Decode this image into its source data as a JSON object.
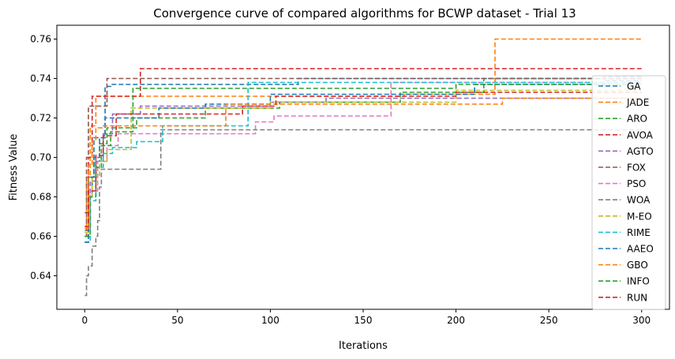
{
  "chart_data": {
    "type": "line",
    "title": "Convergence curve of compared algorithms for BCWP dataset - Trial 13",
    "xlabel": "Iterations",
    "ylabel": "Fitness Value",
    "xlim": [
      -15,
      315
    ],
    "ylim": [
      0.623,
      0.767
    ],
    "xticks": [
      0,
      50,
      100,
      150,
      200,
      250,
      300
    ],
    "yticks": [
      0.64,
      0.66,
      0.68,
      0.7,
      0.72,
      0.74,
      0.76
    ],
    "grid": false,
    "legend_position": "right",
    "series": [
      {
        "name": "GA",
        "color": "#1f77b4",
        "points": [
          [
            0,
            0.657
          ],
          [
            2,
            0.68
          ],
          [
            4,
            0.69
          ],
          [
            6,
            0.698
          ],
          [
            8,
            0.71
          ],
          [
            11,
            0.736
          ],
          [
            14,
            0.737
          ],
          [
            115,
            0.74
          ],
          [
            280,
            0.741
          ],
          [
            300,
            0.741
          ]
        ]
      },
      {
        "name": "JADE",
        "color": "#ff7f0e",
        "points": [
          [
            0,
            0.665
          ],
          [
            1,
            0.69
          ],
          [
            3,
            0.716
          ],
          [
            6,
            0.731
          ],
          [
            13,
            0.731
          ],
          [
            80,
            0.731
          ],
          [
            140,
            0.731
          ],
          [
            172,
            0.732
          ],
          [
            221,
            0.76
          ],
          [
            300,
            0.76
          ]
        ]
      },
      {
        "name": "ARO",
        "color": "#2ca02c",
        "points": [
          [
            0,
            0.66
          ],
          [
            2,
            0.69
          ],
          [
            5,
            0.7
          ],
          [
            8,
            0.707
          ],
          [
            12,
            0.715
          ],
          [
            28,
            0.72
          ],
          [
            65,
            0.725
          ],
          [
            105,
            0.728
          ],
          [
            170,
            0.733
          ],
          [
            215,
            0.74
          ],
          [
            300,
            0.74
          ]
        ]
      },
      {
        "name": "AVOA",
        "color": "#d62728",
        "points": [
          [
            0,
            0.672
          ],
          [
            2,
            0.7
          ],
          [
            4,
            0.731
          ],
          [
            14,
            0.731
          ],
          [
            30,
            0.745
          ],
          [
            300,
            0.745
          ]
        ]
      },
      {
        "name": "AGTO",
        "color": "#9467bd",
        "points": [
          [
            0,
            0.663
          ],
          [
            3,
            0.688
          ],
          [
            6,
            0.7
          ],
          [
            10,
            0.712
          ],
          [
            15,
            0.722
          ],
          [
            30,
            0.726
          ],
          [
            60,
            0.726
          ],
          [
            100,
            0.728
          ],
          [
            130,
            0.73
          ],
          [
            300,
            0.73
          ]
        ]
      },
      {
        "name": "FOX",
        "color": "#8c564b",
        "points": [
          [
            0,
            0.66
          ],
          [
            1,
            0.7
          ],
          [
            2,
            0.726
          ],
          [
            10,
            0.726
          ],
          [
            12,
            0.74
          ],
          [
            300,
            0.74
          ]
        ]
      },
      {
        "name": "PSO",
        "color": "#e377c2",
        "points": [
          [
            0,
            0.66
          ],
          [
            3,
            0.683
          ],
          [
            7,
            0.698
          ],
          [
            12,
            0.706
          ],
          [
            18,
            0.712
          ],
          [
            35,
            0.712
          ],
          [
            90,
            0.712
          ],
          [
            92,
            0.718
          ],
          [
            102,
            0.721
          ],
          [
            162,
            0.721
          ],
          [
            165,
            0.738
          ],
          [
            300,
            0.738
          ]
        ]
      },
      {
        "name": "WOA",
        "color": "#7f7f7f",
        "points": [
          [
            0,
            0.63
          ],
          [
            1,
            0.64
          ],
          [
            2,
            0.645
          ],
          [
            4,
            0.655
          ],
          [
            6,
            0.66
          ],
          [
            7,
            0.668
          ],
          [
            8,
            0.685
          ],
          [
            9,
            0.694
          ],
          [
            40,
            0.694
          ],
          [
            41,
            0.714
          ],
          [
            300,
            0.714
          ]
        ]
      },
      {
        "name": "M-EO",
        "color": "#bcbd22",
        "points": [
          [
            0,
            0.662
          ],
          [
            2,
            0.68
          ],
          [
            4,
            0.69
          ],
          [
            8,
            0.698
          ],
          [
            12,
            0.704
          ],
          [
            22,
            0.704
          ],
          [
            25,
            0.725
          ],
          [
            60,
            0.725
          ],
          [
            100,
            0.728
          ],
          [
            200,
            0.734
          ],
          [
            300,
            0.734
          ]
        ]
      },
      {
        "name": "RIME",
        "color": "#17becf",
        "points": [
          [
            0,
            0.657
          ],
          [
            3,
            0.678
          ],
          [
            6,
            0.695
          ],
          [
            10,
            0.702
          ],
          [
            15,
            0.705
          ],
          [
            28,
            0.708
          ],
          [
            42,
            0.716
          ],
          [
            88,
            0.738
          ],
          [
            300,
            0.738
          ]
        ]
      },
      {
        "name": "AAEO",
        "color": "#1f77b4",
        "points": [
          [
            0,
            0.657
          ],
          [
            2,
            0.69
          ],
          [
            5,
            0.71
          ],
          [
            11,
            0.72
          ],
          [
            40,
            0.725
          ],
          [
            65,
            0.727
          ],
          [
            100,
            0.732
          ],
          [
            210,
            0.737
          ],
          [
            280,
            0.739
          ],
          [
            300,
            0.739
          ]
        ]
      },
      {
        "name": "GBO",
        "color": "#ff7f0e",
        "points": [
          [
            0,
            0.664
          ],
          [
            2,
            0.696
          ],
          [
            4,
            0.708
          ],
          [
            6,
            0.715
          ],
          [
            10,
            0.716
          ],
          [
            75,
            0.716
          ],
          [
            76,
            0.727
          ],
          [
            225,
            0.73
          ],
          [
            300,
            0.73
          ]
        ]
      },
      {
        "name": "INFO",
        "color": "#2ca02c",
        "points": [
          [
            0,
            0.66
          ],
          [
            3,
            0.68
          ],
          [
            6,
            0.695
          ],
          [
            9,
            0.706
          ],
          [
            14,
            0.713
          ],
          [
            26,
            0.735
          ],
          [
            110,
            0.735
          ],
          [
            200,
            0.737
          ],
          [
            300,
            0.737
          ]
        ]
      },
      {
        "name": "RUN",
        "color": "#d62728",
        "points": [
          [
            0,
            0.665
          ],
          [
            2,
            0.683
          ],
          [
            6,
            0.701
          ],
          [
            10,
            0.711
          ],
          [
            17,
            0.722
          ],
          [
            40,
            0.722
          ],
          [
            85,
            0.726
          ],
          [
            103,
            0.731
          ],
          [
            200,
            0.733
          ],
          [
            300,
            0.733
          ]
        ]
      }
    ]
  }
}
